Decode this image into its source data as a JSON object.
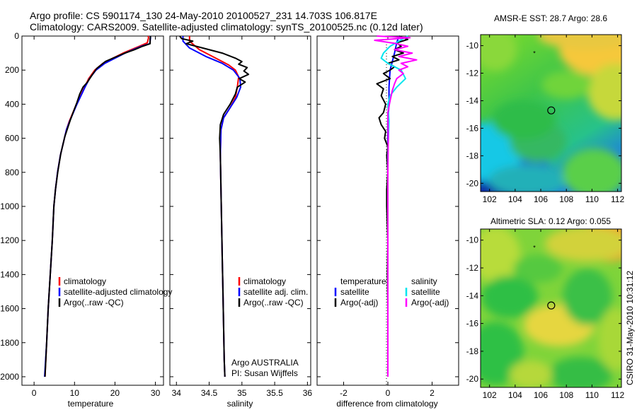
{
  "header": {
    "line1": "Argo profile: CS 5901174_130 24-May-2010 20100527_231 14.703S 106.817E",
    "line2": "Climatology: CARS2009. Satellite-adjusted climatology: synTS_20100525.nc (0.12d later)"
  },
  "credit": "CSIRO 31-May-2010 10:31:12",
  "colors": {
    "climatology": "#ff0000",
    "satellite": "#0000ff",
    "argo": "#000000",
    "sal_satellite": "#00e5ee",
    "sal_argo": "#ff00ff"
  },
  "chart_data": [
    {
      "type": "line",
      "id": "temperature",
      "xlabel": "temperature",
      "xlim": [
        -3,
        32
      ],
      "ylim": [
        0,
        2050
      ],
      "xticks": [
        "0",
        "10",
        "20",
        "30"
      ],
      "yticks": [
        "0",
        "200",
        "400",
        "600",
        "800",
        "1000",
        "1200",
        "1400",
        "1600",
        "1800",
        "2000"
      ],
      "legend": [
        "climatology",
        "satellite-adjusted climatology",
        "Argo(..raw -QC)"
      ],
      "series": [
        {
          "name": "climatology",
          "color": "#ff0000",
          "points": [
            [
              28.2,
              0
            ],
            [
              28.3,
              10
            ],
            [
              28.0,
              40
            ],
            [
              26.0,
              60
            ],
            [
              24.0,
              80
            ],
            [
              22.0,
              100
            ],
            [
              19.5,
              130
            ],
            [
              17.0,
              160
            ],
            [
              15.0,
              200
            ],
            [
              13.5,
              250
            ],
            [
              12.5,
              300
            ],
            [
              11.5,
              350
            ],
            [
              10.5,
              400
            ],
            [
              9.6,
              450
            ],
            [
              8.7,
              500
            ],
            [
              8.0,
              550
            ],
            [
              7.5,
              600
            ],
            [
              6.5,
              700
            ],
            [
              5.8,
              800
            ],
            [
              5.3,
              900
            ],
            [
              4.9,
              1000
            ],
            [
              4.5,
              1200
            ],
            [
              4.0,
              1400
            ],
            [
              3.5,
              1600
            ],
            [
              3.1,
              1800
            ],
            [
              2.7,
              2000
            ]
          ]
        },
        {
          "name": "satellite-adjusted climatology",
          "color": "#0000ff",
          "points": [
            [
              28.7,
              0
            ],
            [
              28.8,
              10
            ],
            [
              28.6,
              45
            ],
            [
              26.5,
              60
            ],
            [
              24.5,
              80
            ],
            [
              22.5,
              100
            ],
            [
              20.0,
              130
            ],
            [
              17.5,
              160
            ],
            [
              15.3,
              200
            ],
            [
              13.7,
              250
            ],
            [
              12.6,
              300
            ],
            [
              11.6,
              350
            ],
            [
              10.6,
              400
            ],
            [
              9.7,
              450
            ],
            [
              8.8,
              500
            ],
            [
              8.0,
              550
            ],
            [
              7.5,
              600
            ],
            [
              6.5,
              700
            ],
            [
              5.8,
              800
            ],
            [
              5.3,
              900
            ],
            [
              4.9,
              1000
            ],
            [
              4.5,
              1200
            ],
            [
              4.0,
              1400
            ],
            [
              3.5,
              1600
            ],
            [
              3.1,
              1800
            ],
            [
              2.6,
              2000
            ]
          ]
        },
        {
          "name": "Argo(..raw -QC)",
          "color": "#000000",
          "points": [
            [
              28.8,
              0
            ],
            [
              28.7,
              20
            ],
            [
              28.7,
              45
            ],
            [
              26.8,
              60
            ],
            [
              24.8,
              80
            ],
            [
              22.5,
              100
            ],
            [
              20.0,
              125
            ],
            [
              17.6,
              150
            ],
            [
              15.5,
              190
            ],
            [
              14.3,
              230
            ],
            [
              13.2,
              270
            ],
            [
              12.1,
              300
            ],
            [
              11.3,
              340
            ],
            [
              10.6,
              390
            ],
            [
              9.8,
              440
            ],
            [
              9.0,
              490
            ],
            [
              8.3,
              540
            ],
            [
              7.6,
              590
            ],
            [
              6.6,
              690
            ],
            [
              5.9,
              790
            ],
            [
              5.3,
              900
            ],
            [
              4.9,
              1000
            ],
            [
              4.5,
              1200
            ],
            [
              4.0,
              1400
            ],
            [
              3.5,
              1600
            ],
            [
              3.1,
              1800
            ],
            [
              2.7,
              2000
            ]
          ]
        }
      ]
    },
    {
      "type": "line",
      "id": "salinity",
      "xlabel": "salinity",
      "xlim": [
        33.9,
        36.05
      ],
      "ylim": [
        0,
        2050
      ],
      "xticks": [
        "34",
        "34.5",
        "35",
        "35.5",
        "36"
      ],
      "legend": [
        "climatology",
        "satellite adj. clim.",
        "Argo(..raw -QC)"
      ],
      "annotation": [
        "Argo AUSTRALIA",
        "PI: Susan Wijffels"
      ],
      "series": [
        {
          "name": "climatology",
          "color": "#ff0000",
          "points": [
            [
              34.2,
              0
            ],
            [
              34.2,
              30
            ],
            [
              34.35,
              80
            ],
            [
              34.6,
              130
            ],
            [
              34.8,
              170
            ],
            [
              34.9,
              200
            ],
            [
              34.95,
              240
            ],
            [
              34.93,
              300
            ],
            [
              34.9,
              360
            ],
            [
              34.82,
              420
            ],
            [
              34.72,
              480
            ],
            [
              34.68,
              550
            ],
            [
              34.67,
              700
            ],
            [
              34.68,
              900
            ],
            [
              34.69,
              1100
            ],
            [
              34.7,
              1300
            ],
            [
              34.71,
              1500
            ],
            [
              34.72,
              1700
            ],
            [
              34.73,
              1900
            ],
            [
              34.74,
              2000
            ]
          ]
        },
        {
          "name": "satellite adj. clim.",
          "color": "#0000ff",
          "points": [
            [
              34.1,
              0
            ],
            [
              34.1,
              30
            ],
            [
              34.2,
              70
            ],
            [
              34.45,
              120
            ],
            [
              34.7,
              160
            ],
            [
              34.87,
              200
            ],
            [
              34.97,
              250
            ],
            [
              34.98,
              300
            ],
            [
              34.92,
              360
            ],
            [
              34.82,
              420
            ],
            [
              34.72,
              480
            ],
            [
              34.68,
              550
            ],
            [
              34.67,
              700
            ],
            [
              34.68,
              900
            ],
            [
              34.69,
              1100
            ],
            [
              34.7,
              1300
            ],
            [
              34.71,
              1500
            ],
            [
              34.72,
              1700
            ],
            [
              34.73,
              1900
            ],
            [
              34.74,
              2000
            ]
          ]
        },
        {
          "name": "Argo(..raw -QC)",
          "color": "#000000",
          "points": [
            [
              34.05,
              0
            ],
            [
              34.08,
              15
            ],
            [
              34.25,
              30
            ],
            [
              34.15,
              45
            ],
            [
              34.4,
              70
            ],
            [
              34.7,
              100
            ],
            [
              34.9,
              130
            ],
            [
              35.0,
              150
            ],
            [
              34.95,
              165
            ],
            [
              35.08,
              185
            ],
            [
              35.03,
              205
            ],
            [
              35.1,
              225
            ],
            [
              34.96,
              250
            ],
            [
              35.05,
              270
            ],
            [
              34.93,
              300
            ],
            [
              34.9,
              340
            ],
            [
              34.82,
              400
            ],
            [
              34.72,
              460
            ],
            [
              34.67,
              520
            ],
            [
              34.66,
              600
            ],
            [
              34.67,
              700
            ],
            [
              34.68,
              900
            ],
            [
              34.69,
              1100
            ],
            [
              34.7,
              1300
            ],
            [
              34.71,
              1500
            ],
            [
              34.72,
              1700
            ],
            [
              34.73,
              1900
            ],
            [
              34.74,
              2000
            ]
          ]
        }
      ]
    },
    {
      "type": "line",
      "id": "difference",
      "xlabel": "difference from climatology",
      "xlim": [
        -3.2,
        3.2
      ],
      "ylim": [
        0,
        2050
      ],
      "xticks": [
        "-2",
        "0",
        "2"
      ],
      "legend_temperature": [
        "temperature",
        "satellite",
        "Argo(-adj)"
      ],
      "legend_salinity": [
        "salinity",
        "satellite",
        "Argo(-adj)"
      ],
      "series": [
        {
          "name": "temperature satellite",
          "color": "#0000ff",
          "points": [
            [
              0.5,
              0
            ],
            [
              0.4,
              40
            ],
            [
              0.3,
              100
            ],
            [
              0.2,
              150
            ],
            [
              0.1,
              200
            ],
            [
              0.05,
              300
            ],
            [
              0.05,
              400
            ],
            [
              0.0,
              500
            ],
            [
              0.0,
              700
            ],
            [
              0.0,
              1000
            ],
            [
              0.0,
              1500
            ],
            [
              0.0,
              2000
            ]
          ]
        },
        {
          "name": "temperature Argo(-adj)",
          "color": "#000000",
          "points": [
            [
              0.5,
              0
            ],
            [
              0.9,
              20
            ],
            [
              0.4,
              40
            ],
            [
              0.6,
              60
            ],
            [
              0.3,
              80
            ],
            [
              0.7,
              100
            ],
            [
              0.2,
              120
            ],
            [
              0.5,
              140
            ],
            [
              0.0,
              160
            ],
            [
              0.3,
              180
            ],
            [
              0.1,
              200
            ],
            [
              -0.2,
              220
            ],
            [
              0.1,
              250
            ],
            [
              -0.5,
              280
            ],
            [
              -0.2,
              310
            ],
            [
              -0.3,
              350
            ],
            [
              -0.1,
              400
            ],
            [
              -0.2,
              450
            ],
            [
              -0.4,
              480
            ],
            [
              -0.3,
              520
            ],
            [
              -0.1,
              560
            ],
            [
              -0.15,
              600
            ],
            [
              0.0,
              650
            ],
            [
              -0.05,
              700
            ],
            [
              0.0,
              800
            ],
            [
              -0.05,
              900
            ],
            [
              -0.05,
              1000
            ],
            [
              0.0,
              1200
            ],
            [
              -0.02,
              1400
            ],
            [
              0.0,
              1600
            ],
            [
              0.0,
              1800
            ],
            [
              0.0,
              2000
            ]
          ]
        },
        {
          "name": "salinity satellite",
          "color": "#00e5ee",
          "points": [
            [
              0.9,
              0
            ],
            [
              0.5,
              30
            ],
            [
              0.1,
              60
            ],
            [
              -0.2,
              100
            ],
            [
              -0.3,
              130
            ],
            [
              0.0,
              160
            ],
            [
              0.6,
              200
            ],
            [
              0.8,
              250
            ],
            [
              0.4,
              300
            ],
            [
              0.1,
              350
            ],
            [
              0.0,
              400
            ],
            [
              0.05,
              500
            ],
            [
              0.0,
              700
            ],
            [
              0.0,
              1000
            ],
            [
              0.0,
              1500
            ],
            [
              0.0,
              2000
            ]
          ]
        },
        {
          "name": "salinity Argo(-adj)",
          "color": "#ff00ff",
          "points": [
            [
              -0.5,
              0
            ],
            [
              1.0,
              10
            ],
            [
              -0.6,
              25
            ],
            [
              0.4,
              45
            ],
            [
              0.9,
              60
            ],
            [
              0.3,
              80
            ],
            [
              1.1,
              100
            ],
            [
              0.5,
              120
            ],
            [
              1.3,
              140
            ],
            [
              0.6,
              160
            ],
            [
              0.9,
              180
            ],
            [
              0.5,
              200
            ],
            [
              0.7,
              220
            ],
            [
              0.4,
              250
            ],
            [
              0.3,
              280
            ],
            [
              0.2,
              320
            ],
            [
              0.1,
              380
            ],
            [
              0.0,
              450
            ],
            [
              0.02,
              600
            ],
            [
              0.0,
              800
            ],
            [
              0.0,
              1000
            ],
            [
              0.0,
              1500
            ],
            [
              0.0,
              2000
            ]
          ]
        }
      ]
    },
    {
      "type": "heatmap",
      "id": "sst-map",
      "title": "AMSR-E SST: 28.7 Argo: 28.6",
      "xlim": [
        101.3,
        112.3
      ],
      "ylim": [
        -20.6,
        -9.2
      ],
      "xticks": [
        "102",
        "104",
        "106",
        "108",
        "110",
        "112"
      ],
      "yticks": [
        "-10",
        "-12",
        "-14",
        "-16",
        "-18",
        "-20"
      ],
      "argo_position": [
        106.817,
        -14.703
      ],
      "star_position": [
        105.5,
        -10.5
      ]
    },
    {
      "type": "heatmap",
      "id": "sla-map",
      "title": "Altimetric SLA: 0.12 Argo: 0.055",
      "xlim": [
        101.3,
        112.3
      ],
      "ylim": [
        -20.6,
        -9.2
      ],
      "xticks": [
        "102",
        "104",
        "106",
        "108",
        "110",
        "112"
      ],
      "yticks": [
        "-10",
        "-12",
        "-14",
        "-16",
        "-18",
        "-20"
      ],
      "argo_position": [
        106.817,
        -14.703
      ],
      "star_position": [
        105.5,
        -10.5
      ]
    }
  ]
}
